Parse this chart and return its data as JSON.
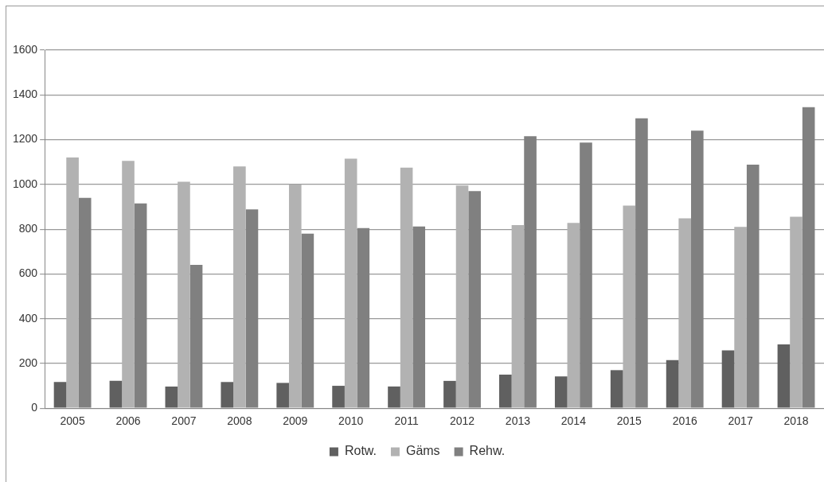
{
  "chart_data": {
    "type": "bar",
    "categories": [
      "2005",
      "2006",
      "2007",
      "2008",
      "2009",
      "2010",
      "2011",
      "2012",
      "2013",
      "2014",
      "2015",
      "2016",
      "2017",
      "2018"
    ],
    "series": [
      {
        "name": "Rotw.",
        "color": "#606060",
        "values": [
          117,
          122,
          97,
          117,
          113,
          100,
          97,
          122,
          150,
          142,
          170,
          215,
          258,
          285
        ]
      },
      {
        "name": "Gäms",
        "color": "#b2b2b2",
        "values": [
          1120,
          1105,
          1012,
          1080,
          1000,
          1115,
          1075,
          995,
          818,
          828,
          905,
          848,
          810,
          855
        ]
      },
      {
        "name": "Rehw.",
        "color": "#808080",
        "values": [
          940,
          915,
          640,
          888,
          780,
          805,
          812,
          970,
          1215,
          1187,
          1295,
          1240,
          1088,
          1345
        ]
      }
    ],
    "ylim": [
      0,
      1600
    ],
    "yticks": [
      0,
      200,
      400,
      600,
      800,
      1000,
      1200,
      1400,
      1600
    ],
    "grid": "y",
    "legend": "bottom"
  }
}
